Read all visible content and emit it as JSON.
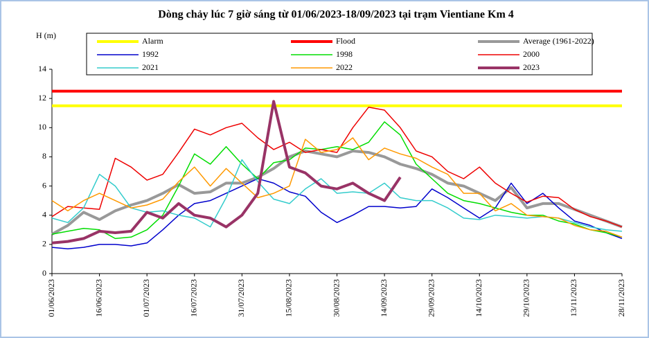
{
  "chart_data": {
    "type": "line",
    "title": "Dòng chảy lúc 7 giờ sáng từ 01/06/2023-18/09/2023 tại trạm Vientiane Km 4",
    "y_label": "H (m)",
    "x": [
      "01/06/2023",
      "06/06/2023",
      "11/06/2023",
      "16/06/2023",
      "21/06/2023",
      "26/06/2023",
      "01/07/2023",
      "06/07/2023",
      "11/07/2023",
      "16/07/2023",
      "21/07/2023",
      "26/07/2023",
      "31/07/2023",
      "05/08/2023",
      "10/08/2023",
      "15/08/2023",
      "20/08/2023",
      "25/08/2023",
      "30/08/2023",
      "04/09/2023",
      "09/09/2023",
      "14/09/2023",
      "19/09/2023",
      "24/09/2023",
      "29/09/2023",
      "04/10/2023",
      "09/10/2023",
      "14/10/2023",
      "19/10/2023",
      "24/10/2023",
      "29/10/2023",
      "03/11/2023",
      "08/11/2023",
      "13/11/2023",
      "18/11/2023",
      "23/11/2023",
      "28/11/2023"
    ],
    "xlim": [
      "01/06/2023",
      "28/11/2023"
    ],
    "xticks": [
      "01/06/2023",
      "16/06/2023",
      "01/07/2023",
      "16/07/2023",
      "31/07/2023",
      "15/08/2023",
      "30/08/2023",
      "14/09/2023",
      "29/09/2023",
      "14/10/2023",
      "29/10/2023",
      "13/11/2023",
      "28/11/2023"
    ],
    "ylim": [
      0,
      14
    ],
    "yticks": [
      0,
      2,
      4,
      6,
      8,
      10,
      12,
      14
    ],
    "series": [
      {
        "name": "Alarm",
        "color": "#ffff00",
        "width": 4,
        "values": [
          11.5,
          11.5,
          11.5,
          11.5,
          11.5,
          11.5,
          11.5,
          11.5,
          11.5,
          11.5,
          11.5,
          11.5,
          11.5,
          11.5,
          11.5,
          11.5,
          11.5,
          11.5,
          11.5,
          11.5,
          11.5,
          11.5,
          11.5,
          11.5,
          11.5,
          11.5,
          11.5,
          11.5,
          11.5,
          11.5,
          11.5,
          11.5,
          11.5,
          11.5,
          11.5,
          11.5,
          11.5
        ]
      },
      {
        "name": "Flood",
        "color": "#ff0000",
        "width": 4,
        "values": [
          12.5,
          12.5,
          12.5,
          12.5,
          12.5,
          12.5,
          12.5,
          12.5,
          12.5,
          12.5,
          12.5,
          12.5,
          12.5,
          12.5,
          12.5,
          12.5,
          12.5,
          12.5,
          12.5,
          12.5,
          12.5,
          12.5,
          12.5,
          12.5,
          12.5,
          12.5,
          12.5,
          12.5,
          12.5,
          12.5,
          12.5,
          12.5,
          12.5,
          12.5,
          12.5,
          12.5,
          12.5
        ]
      },
      {
        "name": "Average (1961-2022)",
        "color": "#999999",
        "width": 4,
        "values": [
          2.7,
          3.3,
          4.2,
          3.7,
          4.3,
          4.7,
          5.0,
          5.5,
          6.1,
          5.5,
          5.6,
          6.2,
          6.2,
          6.6,
          7.2,
          8.0,
          8.4,
          8.2,
          8.0,
          8.4,
          8.3,
          8.0,
          7.5,
          7.2,
          6.8,
          6.2,
          6.0,
          5.5,
          5.0,
          5.9,
          4.5,
          4.8,
          4.8,
          4.4,
          4.0,
          3.6,
          3.2
        ]
      },
      {
        "name": "1992",
        "color": "#0000cc",
        "width": 1.5,
        "values": [
          1.8,
          1.7,
          1.8,
          2.0,
          2.0,
          1.9,
          2.1,
          3.0,
          4.0,
          4.8,
          5.0,
          5.5,
          6.0,
          6.5,
          6.2,
          5.6,
          5.3,
          4.2,
          3.5,
          4.0,
          4.6,
          4.6,
          4.5,
          4.6,
          5.8,
          5.2,
          4.5,
          3.8,
          4.5,
          6.2,
          4.8,
          5.5,
          4.5,
          3.6,
          3.3,
          2.8,
          2.4
        ]
      },
      {
        "name": "1998",
        "color": "#00dd00",
        "width": 1.5,
        "values": [
          2.7,
          2.9,
          3.1,
          3.0,
          2.4,
          2.5,
          3.0,
          4.0,
          6.0,
          8.2,
          7.5,
          8.7,
          7.5,
          6.5,
          7.6,
          7.8,
          8.6,
          8.5,
          8.7,
          8.5,
          9.0,
          10.4,
          9.5,
          7.5,
          6.5,
          5.5,
          5.0,
          4.8,
          4.5,
          4.2,
          4.0,
          4.0,
          3.6,
          3.4,
          3.0,
          2.8,
          2.5
        ]
      },
      {
        "name": "2000",
        "color": "#ee0000",
        "width": 1.5,
        "values": [
          3.9,
          4.6,
          4.5,
          4.4,
          7.9,
          7.3,
          6.4,
          6.8,
          8.3,
          9.9,
          9.5,
          10.0,
          10.3,
          9.3,
          8.5,
          9.0,
          8.3,
          8.5,
          8.3,
          10.0,
          11.4,
          11.2,
          10.0,
          8.4,
          8.0,
          7.0,
          6.5,
          7.3,
          6.2,
          5.5,
          4.9,
          5.3,
          5.2,
          4.4,
          3.9,
          3.6,
          3.2
        ]
      },
      {
        "name": "2021",
        "color": "#33cccc",
        "width": 1.5,
        "values": [
          3.8,
          3.5,
          4.5,
          6.8,
          6.0,
          4.5,
          4.2,
          4.3,
          4.0,
          3.8,
          3.2,
          5.2,
          7.8,
          6.3,
          5.1,
          4.8,
          5.8,
          6.5,
          5.5,
          5.6,
          5.5,
          6.2,
          5.2,
          5.0,
          5.0,
          4.5,
          3.8,
          3.7,
          4.0,
          3.9,
          3.8,
          3.9,
          3.8,
          3.5,
          3.2,
          3.0,
          2.9
        ]
      },
      {
        "name": "2022",
        "color": "#ff9900",
        "width": 1.5,
        "values": [
          5.0,
          4.3,
          5.0,
          5.5,
          5.0,
          4.5,
          4.7,
          5.1,
          6.3,
          7.3,
          6.0,
          7.2,
          6.2,
          5.2,
          5.5,
          6.0,
          9.2,
          8.3,
          8.5,
          9.3,
          7.8,
          8.6,
          8.2,
          7.9,
          7.3,
          6.8,
          5.5,
          5.5,
          4.3,
          4.8,
          4.0,
          3.9,
          3.8,
          3.3,
          3.0,
          2.9,
          2.5
        ]
      },
      {
        "name": "2023",
        "color": "#993366",
        "width": 4,
        "values": [
          2.1,
          2.2,
          2.4,
          2.9,
          2.8,
          2.9,
          4.2,
          3.8,
          4.8,
          4.0,
          3.8,
          3.2,
          4.0,
          5.5,
          11.8,
          7.3,
          6.9,
          6.0,
          5.8,
          6.2,
          5.5,
          5.0,
          6.6,
          null,
          null,
          null,
          null,
          null,
          null,
          null,
          null,
          null,
          null,
          null,
          null,
          null,
          null
        ]
      }
    ]
  }
}
